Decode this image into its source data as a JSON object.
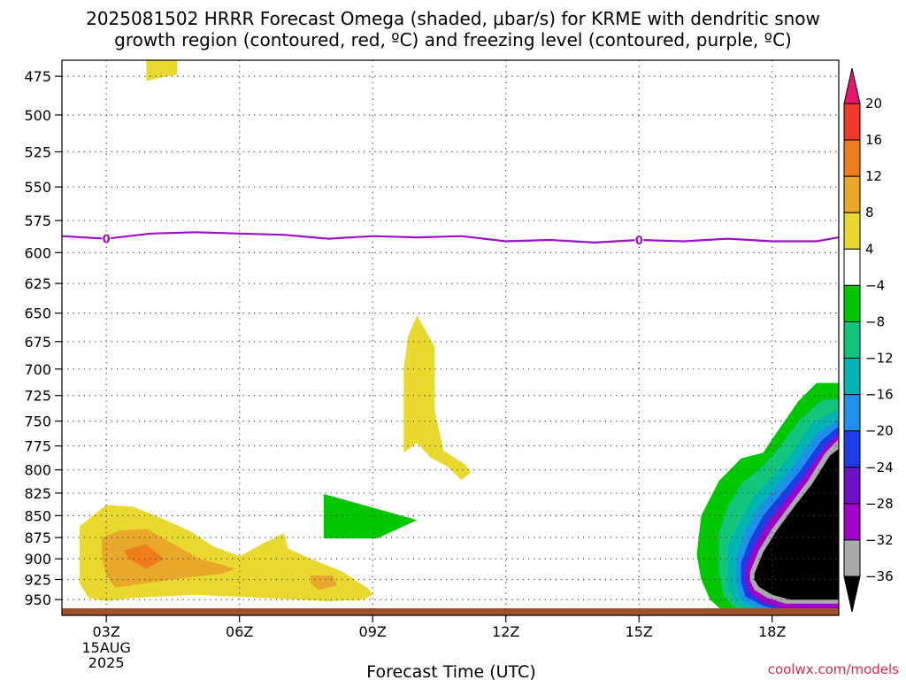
{
  "chart_data": {
    "type": "heatmap",
    "title_lines": [
      "2025081502 HRRR Forecast Omega (shaded, μbar/s) for KRME with dendritic snow",
      "growth region (contoured, red, ºC) and freezing level (contoured, purple, ºC)"
    ],
    "xlabel": "Forecast Time (UTC)",
    "x_ticks": [
      {
        "hour": 3,
        "label": "03Z",
        "sub": [
          "15AUG",
          "2025"
        ]
      },
      {
        "hour": 6,
        "label": "06Z"
      },
      {
        "hour": 9,
        "label": "09Z"
      },
      {
        "hour": 12,
        "label": "12Z"
      },
      {
        "hour": 15,
        "label": "15Z"
      },
      {
        "hour": 18,
        "label": "18Z"
      }
    ],
    "xlim": [
      2,
      19.5
    ],
    "y_ticks": [
      475,
      500,
      525,
      550,
      575,
      600,
      625,
      650,
      675,
      700,
      725,
      750,
      775,
      800,
      825,
      850,
      875,
      900,
      925,
      950
    ],
    "ylim": [
      970,
      465
    ],
    "y_axis_scale": "log",
    "grid": true,
    "colorbar": {
      "levels": [
        "20",
        "16",
        "12",
        "8",
        "4",
        "−4",
        "−8",
        "−12",
        "−16",
        "−20",
        "−24",
        "−28",
        "−32",
        "−36"
      ],
      "colors": [
        "#e8156e",
        "#f03a2e",
        "#ef7d1c",
        "#e8a82a",
        "#e9d92f",
        "#ffffff",
        "#00c800",
        "#12c47c",
        "#00b4b4",
        "#1e90e8",
        "#1e3ce6",
        "#6e10c8",
        "#a000c8",
        "#a9a9a9",
        "#000000"
      ]
    },
    "freezing_level": {
      "color": "#9b10c8",
      "label": "0",
      "label_hours": [
        3,
        15
      ],
      "points": [
        [
          2,
          587
        ],
        [
          3,
          589
        ],
        [
          4,
          585
        ],
        [
          5,
          584
        ],
        [
          6,
          585
        ],
        [
          7,
          586
        ],
        [
          8,
          589
        ],
        [
          9,
          587
        ],
        [
          10,
          588
        ],
        [
          11,
          587
        ],
        [
          12,
          591
        ],
        [
          13,
          590
        ],
        [
          14,
          592
        ],
        [
          15,
          590
        ],
        [
          16,
          591
        ],
        [
          17,
          589
        ],
        [
          18,
          591
        ],
        [
          19,
          591
        ],
        [
          19.5,
          588
        ]
      ]
    },
    "omega_regions": [
      {
        "color": "#e9d92f",
        "points": [
          [
            3.9,
            465
          ],
          [
            4.6,
            465
          ],
          [
            4.6,
            474
          ],
          [
            4.2,
            476
          ],
          [
            3.9,
            478
          ]
        ]
      },
      {
        "color": "#e9d92f",
        "points": [
          [
            10.0,
            652
          ],
          [
            10.4,
            680
          ],
          [
            10.4,
            710
          ],
          [
            10.4,
            740
          ],
          [
            10.6,
            780
          ],
          [
            11.1,
            795
          ],
          [
            11.2,
            803
          ],
          [
            11.0,
            811
          ],
          [
            10.7,
            797
          ],
          [
            10.3,
            787
          ],
          [
            10.0,
            772
          ],
          [
            9.7,
            782
          ],
          [
            9.7,
            740
          ],
          [
            9.7,
            700
          ],
          [
            9.8,
            670
          ],
          [
            10.0,
            652
          ]
        ]
      },
      {
        "color": "#e9d92f",
        "points": [
          [
            2.4,
            862
          ],
          [
            3.0,
            838
          ],
          [
            3.6,
            840
          ],
          [
            4.2,
            852
          ],
          [
            4.9,
            868
          ],
          [
            5.4,
            885
          ],
          [
            6.0,
            897
          ],
          [
            6.6,
            880
          ],
          [
            7.0,
            870
          ],
          [
            7.1,
            888
          ],
          [
            7.6,
            900
          ],
          [
            8.3,
            915
          ],
          [
            8.9,
            936
          ],
          [
            9.0,
            944
          ],
          [
            8.8,
            950
          ],
          [
            8.0,
            952
          ],
          [
            7.3,
            950
          ],
          [
            6.2,
            947
          ],
          [
            5.0,
            944
          ],
          [
            3.6,
            948
          ],
          [
            3.0,
            952
          ],
          [
            2.6,
            948
          ],
          [
            2.4,
            930
          ],
          [
            2.4,
            900
          ],
          [
            2.4,
            880
          ]
        ]
      },
      {
        "color": "#e8a82a",
        "points": [
          [
            2.9,
            875
          ],
          [
            3.3,
            867
          ],
          [
            3.9,
            865
          ],
          [
            4.6,
            885
          ],
          [
            5.1,
            900
          ],
          [
            5.6,
            907
          ],
          [
            5.9,
            912
          ],
          [
            5.6,
            918
          ],
          [
            4.9,
            922
          ],
          [
            4.1,
            928
          ],
          [
            3.2,
            935
          ],
          [
            3.0,
            920
          ],
          [
            2.9,
            900
          ]
        ]
      },
      {
        "color": "#e8a82a",
        "points": [
          [
            7.6,
            920
          ],
          [
            8.1,
            920
          ],
          [
            8.2,
            932
          ],
          [
            7.8,
            938
          ],
          [
            7.6,
            930
          ]
        ]
      },
      {
        "color": "#ef7d1c",
        "points": [
          [
            3.4,
            890
          ],
          [
            3.9,
            883
          ],
          [
            4.3,
            900
          ],
          [
            3.9,
            912
          ],
          [
            3.5,
            900
          ]
        ]
      },
      {
        "color": "#00c800",
        "points": [
          [
            7.9,
            826
          ],
          [
            10.0,
            855
          ],
          [
            9.1,
            876
          ],
          [
            7.9,
            876
          ]
        ]
      },
      {
        "color": "#00c800",
        "points": [
          [
            16.4,
            850
          ],
          [
            16.8,
            812
          ],
          [
            17.3,
            788
          ],
          [
            17.8,
            782
          ],
          [
            18.0,
            768
          ],
          [
            18.6,
            730
          ],
          [
            19.0,
            713
          ],
          [
            19.5,
            713
          ],
          [
            19.5,
            975
          ],
          [
            18.5,
            975
          ],
          [
            17.5,
            972
          ],
          [
            16.9,
            965
          ],
          [
            16.6,
            950
          ],
          [
            16.4,
            925
          ],
          [
            16.3,
            895
          ]
        ]
      },
      {
        "color": "#12c47c",
        "points": [
          [
            16.8,
            870
          ],
          [
            17.0,
            840
          ],
          [
            17.3,
            815
          ],
          [
            17.7,
            800
          ],
          [
            18.1,
            780
          ],
          [
            18.6,
            750
          ],
          [
            19.1,
            730
          ],
          [
            19.5,
            728
          ],
          [
            19.5,
            972
          ],
          [
            18.3,
            972
          ],
          [
            17.5,
            968
          ],
          [
            17.1,
            958
          ],
          [
            16.9,
            945
          ],
          [
            16.8,
            915
          ]
        ]
      },
      {
        "color": "#00b4b4",
        "points": [
          [
            17.0,
            885
          ],
          [
            17.3,
            855
          ],
          [
            17.6,
            828
          ],
          [
            18.0,
            808
          ],
          [
            18.4,
            785
          ],
          [
            18.9,
            752
          ],
          [
            19.5,
            738
          ],
          [
            19.5,
            970
          ],
          [
            18.3,
            970
          ],
          [
            17.6,
            965
          ],
          [
            17.2,
            955
          ],
          [
            17.0,
            935
          ]
        ]
      },
      {
        "color": "#1e90e8",
        "points": [
          [
            17.2,
            895
          ],
          [
            17.4,
            868
          ],
          [
            17.7,
            840
          ],
          [
            18.1,
            818
          ],
          [
            18.5,
            795
          ],
          [
            19.0,
            763
          ],
          [
            19.5,
            748
          ],
          [
            19.5,
            968
          ],
          [
            18.3,
            968
          ],
          [
            17.7,
            962
          ],
          [
            17.3,
            950
          ],
          [
            17.2,
            930
          ]
        ]
      },
      {
        "color": "#1e3ce6",
        "points": [
          [
            17.3,
            905
          ],
          [
            17.5,
            877
          ],
          [
            17.8,
            850
          ],
          [
            18.2,
            826
          ],
          [
            18.6,
            803
          ],
          [
            19.1,
            770
          ],
          [
            19.5,
            755
          ],
          [
            19.5,
            965
          ],
          [
            18.3,
            965
          ],
          [
            17.8,
            958
          ],
          [
            17.4,
            946
          ],
          [
            17.3,
            928
          ]
        ]
      },
      {
        "color": "#a000c8",
        "points": [
          [
            17.4,
            912
          ],
          [
            17.6,
            885
          ],
          [
            17.9,
            858
          ],
          [
            18.3,
            833
          ],
          [
            18.7,
            808
          ],
          [
            19.2,
            776
          ],
          [
            19.5,
            762
          ],
          [
            19.5,
            962
          ],
          [
            18.3,
            962
          ],
          [
            17.8,
            954
          ],
          [
            17.5,
            942
          ],
          [
            17.4,
            925
          ]
        ]
      },
      {
        "color": "#a9a9a9",
        "points": [
          [
            17.5,
            916
          ],
          [
            17.7,
            890
          ],
          [
            18.0,
            865
          ],
          [
            18.4,
            838
          ],
          [
            18.8,
            812
          ],
          [
            19.2,
            782
          ],
          [
            19.5,
            768
          ],
          [
            19.5,
            955
          ],
          [
            18.3,
            955
          ],
          [
            17.9,
            948
          ],
          [
            17.6,
            938
          ],
          [
            17.5,
            926
          ]
        ]
      },
      {
        "color": "#000000",
        "points": [
          [
            17.6,
            918
          ],
          [
            17.8,
            892
          ],
          [
            18.1,
            867
          ],
          [
            18.5,
            840
          ],
          [
            18.9,
            815
          ],
          [
            19.3,
            785
          ],
          [
            19.5,
            778
          ],
          [
            19.5,
            950
          ],
          [
            18.4,
            950
          ],
          [
            18.0,
            944
          ],
          [
            17.7,
            934
          ],
          [
            17.6,
            925
          ]
        ]
      }
    ],
    "surface": {
      "color": "#a0522d"
    }
  },
  "credit": "coolwx.com/models"
}
